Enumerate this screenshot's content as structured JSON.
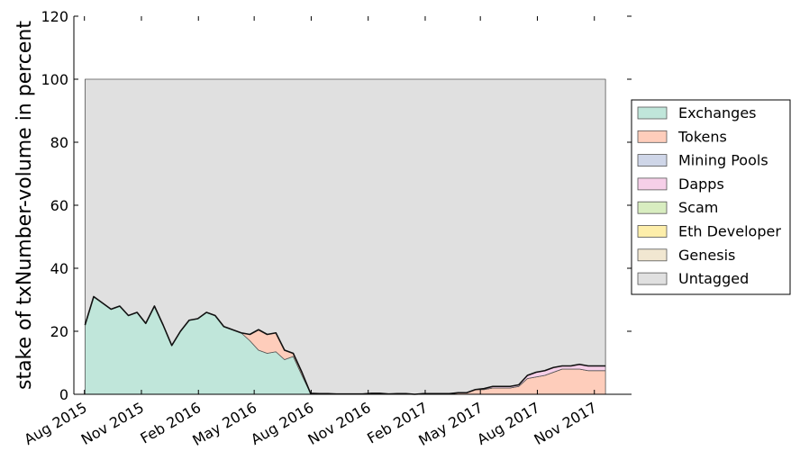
{
  "chart_data": {
    "type": "area",
    "stacked": true,
    "ylabel": "stake of txNumber-volume in percent",
    "xlabel": "",
    "ylim": [
      0,
      120
    ],
    "yticks": [
      0,
      20,
      40,
      60,
      80,
      100,
      120
    ],
    "xlim": [
      "2015-07-15",
      "2017-12-31"
    ],
    "xticks": [
      {
        "date": "2015-08-01",
        "label": "Aug 2015"
      },
      {
        "date": "2015-11-01",
        "label": "Nov 2015"
      },
      {
        "date": "2016-02-01",
        "label": "Feb 2016"
      },
      {
        "date": "2016-05-01",
        "label": "May 2016"
      },
      {
        "date": "2016-08-01",
        "label": "Aug 2016"
      },
      {
        "date": "2016-11-01",
        "label": "Nov 2016"
      },
      {
        "date": "2017-02-01",
        "label": "Feb 2017"
      },
      {
        "date": "2017-05-01",
        "label": "May 2017"
      },
      {
        "date": "2017-08-01",
        "label": "Aug 2017"
      },
      {
        "date": "2017-11-01",
        "label": "Nov 2017"
      }
    ],
    "grid": false,
    "legend_position": "right",
    "x": [
      "2015-08-02",
      "2015-08-16",
      "2015-08-30",
      "2015-09-13",
      "2015-09-27",
      "2015-10-11",
      "2015-10-25",
      "2015-11-08",
      "2015-11-22",
      "2015-12-06",
      "2015-12-20",
      "2016-01-03",
      "2016-01-17",
      "2016-01-31",
      "2016-02-14",
      "2016-02-28",
      "2016-03-13",
      "2016-03-27",
      "2016-04-10",
      "2016-04-24",
      "2016-05-08",
      "2016-05-22",
      "2016-06-05",
      "2016-06-19",
      "2016-07-03",
      "2016-07-17",
      "2016-07-31",
      "2016-08-14",
      "2016-08-28",
      "2016-09-11",
      "2016-09-25",
      "2016-10-09",
      "2016-10-23",
      "2016-11-06",
      "2016-11-20",
      "2016-12-04",
      "2016-12-18",
      "2017-01-01",
      "2017-01-15",
      "2017-01-29",
      "2017-02-12",
      "2017-02-26",
      "2017-03-12",
      "2017-03-26",
      "2017-04-09",
      "2017-04-23",
      "2017-05-07",
      "2017-05-21",
      "2017-06-04",
      "2017-06-18",
      "2017-07-02",
      "2017-07-16",
      "2017-07-30",
      "2017-08-13",
      "2017-08-27",
      "2017-09-10",
      "2017-09-24",
      "2017-10-08",
      "2017-10-22",
      "2017-11-05",
      "2017-11-19"
    ],
    "series": [
      {
        "name": "Exchanges",
        "color": "#c0e6da",
        "values": [
          22,
          31,
          29,
          27,
          28,
          25,
          26,
          22.5,
          28,
          22,
          15.5,
          20,
          23.5,
          24,
          26,
          25,
          21.5,
          20.5,
          19.5,
          17,
          14,
          13,
          13.5,
          11,
          12,
          6,
          0.3,
          0.2,
          0.2,
          0.1,
          0.1,
          0.1,
          0.1,
          0.1,
          0.1,
          0,
          0,
          0,
          0,
          0,
          0,
          0,
          0,
          0,
          0,
          0,
          0,
          0,
          0,
          0,
          0,
          0,
          0,
          0,
          0,
          0,
          0,
          0,
          0,
          0,
          0
        ]
      },
      {
        "name": "Tokens",
        "color": "#fecdbb",
        "values": [
          0,
          0,
          0,
          0,
          0,
          0,
          0,
          0,
          0,
          0,
          0,
          0,
          0,
          0,
          0,
          0,
          0,
          0,
          0,
          2,
          6.5,
          6,
          6,
          3,
          1,
          1,
          0,
          0,
          0,
          0,
          0,
          0,
          0,
          0.2,
          0.2,
          0.1,
          0.2,
          0.2,
          0,
          0.2,
          0.2,
          0.2,
          0.2,
          0.5,
          0.5,
          1.5,
          1.5,
          2,
          2,
          2,
          2.5,
          5,
          5.5,
          6,
          7,
          8,
          8,
          8,
          7.5,
          7.5,
          7.5
        ]
      },
      {
        "name": "Mining Pools",
        "color": "#cfd6e8",
        "values": [
          0,
          0,
          0,
          0,
          0,
          0,
          0,
          0,
          0,
          0,
          0,
          0,
          0,
          0,
          0,
          0,
          0,
          0,
          0,
          0,
          0,
          0,
          0,
          0,
          0,
          0,
          0,
          0,
          0,
          0,
          0,
          0,
          0,
          0,
          0,
          0,
          0,
          0,
          0,
          0,
          0,
          0,
          0,
          0,
          0,
          0,
          0,
          0,
          0,
          0,
          0,
          0,
          0,
          0,
          0,
          0,
          0,
          0,
          0,
          0,
          0
        ]
      },
      {
        "name": "Dapps",
        "color": "#f6cfe8",
        "values": [
          0,
          0,
          0,
          0,
          0,
          0,
          0,
          0,
          0,
          0,
          0,
          0,
          0,
          0,
          0,
          0,
          0,
          0,
          0,
          0,
          0,
          0,
          0,
          0,
          0,
          0,
          0,
          0,
          0,
          0,
          0,
          0,
          0,
          0,
          0,
          0,
          0,
          0,
          0,
          0,
          0,
          0,
          0,
          0,
          0,
          0,
          0.3,
          0.5,
          0.5,
          0.5,
          0.5,
          1,
          1.5,
          1.5,
          1.5,
          1,
          1,
          1.5,
          1.5,
          1.5,
          1.5
        ]
      },
      {
        "name": "Scam",
        "color": "#d8edc0",
        "values": [
          0,
          0,
          0,
          0,
          0,
          0,
          0,
          0,
          0,
          0,
          0,
          0,
          0,
          0,
          0,
          0,
          0,
          0,
          0,
          0,
          0,
          0,
          0,
          0,
          0,
          0,
          0,
          0,
          0,
          0,
          0,
          0,
          0,
          0,
          0,
          0,
          0,
          0,
          0,
          0,
          0,
          0,
          0,
          0,
          0,
          0,
          0,
          0,
          0,
          0,
          0,
          0,
          0,
          0,
          0,
          0,
          0,
          0,
          0,
          0,
          0
        ]
      },
      {
        "name": "Eth Developer",
        "color": "#fdeeaa",
        "values": [
          0,
          0,
          0,
          0,
          0,
          0,
          0,
          0,
          0,
          0,
          0,
          0,
          0,
          0,
          0,
          0,
          0,
          0,
          0,
          0,
          0,
          0,
          0,
          0,
          0,
          0,
          0,
          0,
          0,
          0,
          0,
          0,
          0,
          0,
          0,
          0,
          0,
          0,
          0,
          0,
          0,
          0,
          0,
          0,
          0,
          0,
          0,
          0,
          0,
          0,
          0,
          0,
          0,
          0,
          0,
          0,
          0,
          0,
          0,
          0,
          0
        ]
      },
      {
        "name": "Genesis",
        "color": "#f1e7d1",
        "values": [
          0,
          0,
          0,
          0,
          0,
          0,
          0,
          0,
          0,
          0,
          0,
          0,
          0,
          0,
          0,
          0,
          0,
          0,
          0,
          0,
          0,
          0,
          0,
          0,
          0,
          0,
          0,
          0,
          0,
          0,
          0,
          0,
          0,
          0,
          0,
          0,
          0,
          0,
          0,
          0,
          0,
          0,
          0,
          0,
          0,
          0,
          0,
          0,
          0,
          0,
          0,
          0,
          0,
          0,
          0,
          0,
          0,
          0,
          0,
          0,
          0
        ]
      },
      {
        "name": "Untagged",
        "color": "#e0e0e0",
        "values": [
          78,
          69,
          71,
          73,
          72,
          75,
          74,
          77.5,
          72,
          78,
          84.5,
          80,
          76.5,
          76,
          74,
          75,
          78.5,
          79.5,
          80.5,
          81,
          79.5,
          81,
          80.5,
          86,
          87,
          93,
          99.7,
          99.8,
          99.8,
          99.9,
          99.9,
          99.9,
          99.9,
          99.7,
          99.7,
          99.9,
          99.8,
          99.8,
          100,
          99.8,
          99.8,
          99.8,
          99.8,
          99.5,
          99.5,
          98.5,
          98.2,
          97.5,
          97.5,
          97.5,
          97,
          94,
          93,
          92.5,
          91.5,
          91,
          91,
          90.5,
          91,
          91,
          91
        ]
      }
    ]
  }
}
